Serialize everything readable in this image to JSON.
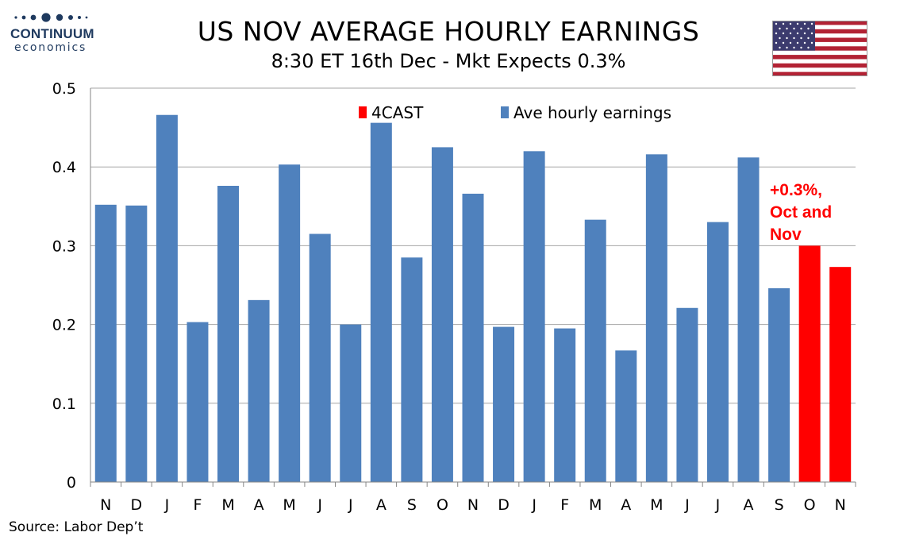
{
  "logo": {
    "name": "CONTINUUM",
    "sub": "economics"
  },
  "header": {
    "title": "US NOV AVERAGE HOURLY EARNINGS",
    "subtitle": "8:30 ET 16th Dec - Mkt Expects 0.3%"
  },
  "source": "Source: Labor Dep’t",
  "colors": {
    "actual": "#4f81bd",
    "forecast": "#ff0000",
    "grid": "#a6a6a6",
    "axis": "#868686",
    "logo": "#1f3a5f"
  },
  "chart_data": {
    "type": "bar",
    "title": "US NOV AVERAGE HOURLY EARNINGS",
    "xlabel": "",
    "ylabel": "",
    "ylim": [
      0,
      0.5
    ],
    "yticks": [
      "0",
      "0.1",
      "0.2",
      "0.3",
      "0.4",
      "0.5"
    ],
    "categories": [
      "N",
      "D",
      "J",
      "F",
      "M",
      "A",
      "M",
      "J",
      "J",
      "A",
      "S",
      "O",
      "N",
      "D",
      "J",
      "F",
      "M",
      "A",
      "M",
      "J",
      "J",
      "A",
      "S",
      "O",
      "N"
    ],
    "series": [
      {
        "name": "Ave hourly earnings",
        "values": [
          0.352,
          0.351,
          0.466,
          0.203,
          0.376,
          0.231,
          0.403,
          0.315,
          0.2,
          0.456,
          0.285,
          0.425,
          0.366,
          0.197,
          0.42,
          0.195,
          0.333,
          0.167,
          0.416,
          0.221,
          0.33,
          0.412,
          0.246,
          null,
          null
        ]
      },
      {
        "name": "4CAST",
        "values": [
          null,
          null,
          null,
          null,
          null,
          null,
          null,
          null,
          null,
          null,
          null,
          null,
          null,
          null,
          null,
          null,
          null,
          null,
          null,
          null,
          null,
          null,
          null,
          0.3,
          0.273
        ]
      }
    ],
    "legend": [
      "4CAST",
      "Ave hourly earnings"
    ],
    "annotation": {
      "lines": [
        "+0.3%,",
        "Oct and",
        "Nov"
      ]
    },
    "grid": true
  }
}
